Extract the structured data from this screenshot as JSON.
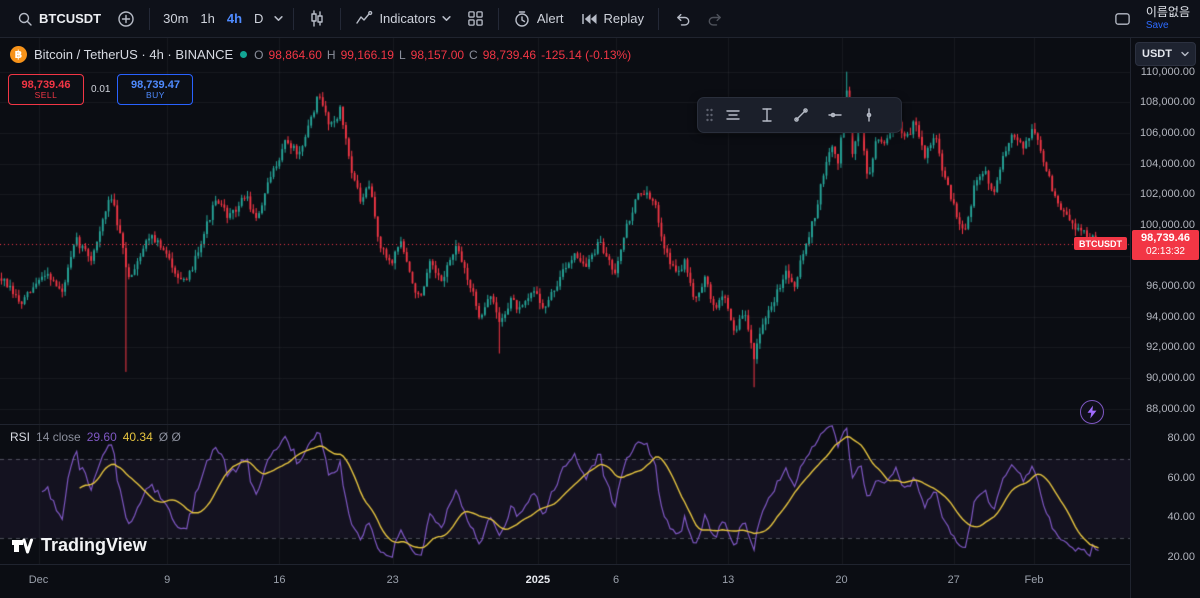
{
  "toolbar": {
    "symbol": "BTCUSDT",
    "intervals": [
      {
        "label": "30m",
        "active": false
      },
      {
        "label": "1h",
        "active": false
      },
      {
        "label": "4h",
        "active": true
      },
      {
        "label": "D",
        "active": false
      }
    ],
    "indicators_label": "Indicators",
    "alert_label": "Alert",
    "replay_label": "Replay",
    "layout_name": "이름없음",
    "save_label": "Save"
  },
  "legend": {
    "symbol_title": "Bitcoin / TetherUS · 4h · BINANCE",
    "ohlc": [
      {
        "k": "O",
        "v": "98,864.60"
      },
      {
        "k": "H",
        "v": "99,166.19"
      },
      {
        "k": "L",
        "v": "98,157.00"
      },
      {
        "k": "C",
        "v": "98,739.46"
      }
    ],
    "change": "-125.14 (-0.13%)"
  },
  "trade_panel": {
    "sell_price": "98,739.46",
    "sell_label": "SELL",
    "spread": "0.01",
    "buy_price": "98,739.47",
    "buy_label": "BUY"
  },
  "price_axis": {
    "currency": "USDT",
    "labels": [
      "110,000.00",
      "108,000.00",
      "106,000.00",
      "104,000.00",
      "102,000.00",
      "100,000.00",
      "96,000.00",
      "94,000.00",
      "92,000.00",
      "90,000.00",
      "88,000.00"
    ],
    "price_tag": "BTCUSDT",
    "current_price": "98,739.46",
    "countdown": "02:13:32"
  },
  "rsi": {
    "title": "RSI",
    "params": "14 close",
    "value": "29.60",
    "ma_value": "40.34",
    "extra": "Ø Ø",
    "axis_labels": [
      "80.00",
      "60.00",
      "40.00",
      "20.00"
    ]
  },
  "time_axis": {
    "labels": [
      {
        "text": "Dec",
        "x": 0.035,
        "bold": false
      },
      {
        "text": "9",
        "x": 0.152,
        "bold": false
      },
      {
        "text": "16",
        "x": 0.254,
        "bold": false
      },
      {
        "text": "23",
        "x": 0.357,
        "bold": false
      },
      {
        "text": "2025",
        "x": 0.489,
        "bold": true
      },
      {
        "text": "6",
        "x": 0.56,
        "bold": false
      },
      {
        "text": "13",
        "x": 0.662,
        "bold": false
      },
      {
        "text": "20",
        "x": 0.765,
        "bold": false
      },
      {
        "text": "27",
        "x": 0.867,
        "bold": false
      },
      {
        "text": "Feb",
        "x": 0.94,
        "bold": false
      }
    ]
  },
  "watermark": {
    "text": "TradingView"
  },
  "icons": {
    "bitcoin": "฿"
  },
  "chart_data": {
    "type": "candlestick",
    "symbol": "BTCUSDT",
    "interval": "4h",
    "exchange": "BINANCE",
    "candles": 380,
    "last_price": 98739.46,
    "price_range": [
      87000,
      112200
    ],
    "grid_prices": [
      88000,
      90000,
      92000,
      94000,
      96000,
      98000,
      100000,
      102000,
      104000,
      106000,
      108000,
      110000
    ],
    "anchors": [
      [
        0.0,
        96500
      ],
      [
        0.018,
        94800
      ],
      [
        0.041,
        97000
      ],
      [
        0.055,
        95500
      ],
      [
        0.068,
        99000
      ],
      [
        0.082,
        97800
      ],
      [
        0.1,
        102000
      ],
      [
        0.116,
        96500
      ],
      [
        0.136,
        99500
      ],
      [
        0.15,
        98000
      ],
      [
        0.168,
        96000
      ],
      [
        0.182,
        99000
      ],
      [
        0.195,
        101500
      ],
      [
        0.209,
        100500
      ],
      [
        0.223,
        102000
      ],
      [
        0.232,
        100200
      ],
      [
        0.245,
        103000
      ],
      [
        0.259,
        105500
      ],
      [
        0.273,
        104500
      ],
      [
        0.282,
        107000
      ],
      [
        0.289,
        108400
      ],
      [
        0.3,
        106500
      ],
      [
        0.309,
        107500
      ],
      [
        0.318,
        104000
      ],
      [
        0.327,
        101500
      ],
      [
        0.336,
        102500
      ],
      [
        0.345,
        98500
      ],
      [
        0.355,
        97500
      ],
      [
        0.364,
        99000
      ],
      [
        0.373,
        96500
      ],
      [
        0.382,
        95000
      ],
      [
        0.391,
        97500
      ],
      [
        0.4,
        96200
      ],
      [
        0.414,
        98500
      ],
      [
        0.423,
        97000
      ],
      [
        0.436,
        94000
      ],
      [
        0.445,
        95500
      ],
      [
        0.455,
        93500
      ],
      [
        0.464,
        95200
      ],
      [
        0.473,
        94300
      ],
      [
        0.486,
        95800
      ],
      [
        0.495,
        94500
      ],
      [
        0.509,
        96500
      ],
      [
        0.523,
        98300
      ],
      [
        0.532,
        97200
      ],
      [
        0.545,
        98800
      ],
      [
        0.559,
        97000
      ],
      [
        0.568,
        99500
      ],
      [
        0.582,
        102300
      ],
      [
        0.595,
        101400
      ],
      [
        0.605,
        98500
      ],
      [
        0.614,
        96800
      ],
      [
        0.623,
        97500
      ],
      [
        0.632,
        95200
      ],
      [
        0.641,
        96500
      ],
      [
        0.65,
        94500
      ],
      [
        0.659,
        95500
      ],
      [
        0.668,
        93000
      ],
      [
        0.677,
        94300
      ],
      [
        0.686,
        91500
      ],
      [
        0.695,
        93500
      ],
      [
        0.705,
        95200
      ],
      [
        0.714,
        97000
      ],
      [
        0.723,
        96200
      ],
      [
        0.732,
        98500
      ],
      [
        0.741,
        100500
      ],
      [
        0.75,
        103500
      ],
      [
        0.757,
        105200
      ],
      [
        0.763,
        104000
      ],
      [
        0.77,
        109200
      ],
      [
        0.776,
        104500
      ],
      [
        0.783,
        107000
      ],
      [
        0.79,
        102800
      ],
      [
        0.798,
        106000
      ],
      [
        0.806,
        105200
      ],
      [
        0.815,
        107300
      ],
      [
        0.824,
        105500
      ],
      [
        0.833,
        106800
      ],
      [
        0.842,
        104500
      ],
      [
        0.851,
        105800
      ],
      [
        0.86,
        103000
      ],
      [
        0.869,
        101000
      ],
      [
        0.878,
        99500
      ],
      [
        0.887,
        102500
      ],
      [
        0.896,
        103500
      ],
      [
        0.905,
        102200
      ],
      [
        0.914,
        104500
      ],
      [
        0.923,
        106000
      ],
      [
        0.932,
        105200
      ],
      [
        0.941,
        106300
      ],
      [
        0.95,
        104200
      ],
      [
        0.96,
        101800
      ],
      [
        0.972,
        100300
      ],
      [
        0.985,
        99600
      ],
      [
        1.0,
        98739
      ]
    ],
    "spikes": [
      {
        "x": 0.113,
        "low": 90400
      },
      {
        "x": 0.455,
        "low": 91600
      },
      {
        "x": 0.686,
        "low": 89400
      },
      {
        "x": 0.77,
        "high": 110000
      }
    ],
    "rsi": {
      "period": 14,
      "band": [
        30,
        70
      ],
      "range": [
        17,
        87
      ]
    },
    "colors": {
      "up": "#26a69a",
      "down": "#f23645",
      "price_line": "#f23645",
      "rsi": "#7e57c2",
      "rsi_ma": "#e4c33f",
      "accent": "#2962ff",
      "grid": "rgba(255,255,255,0.05)"
    }
  }
}
